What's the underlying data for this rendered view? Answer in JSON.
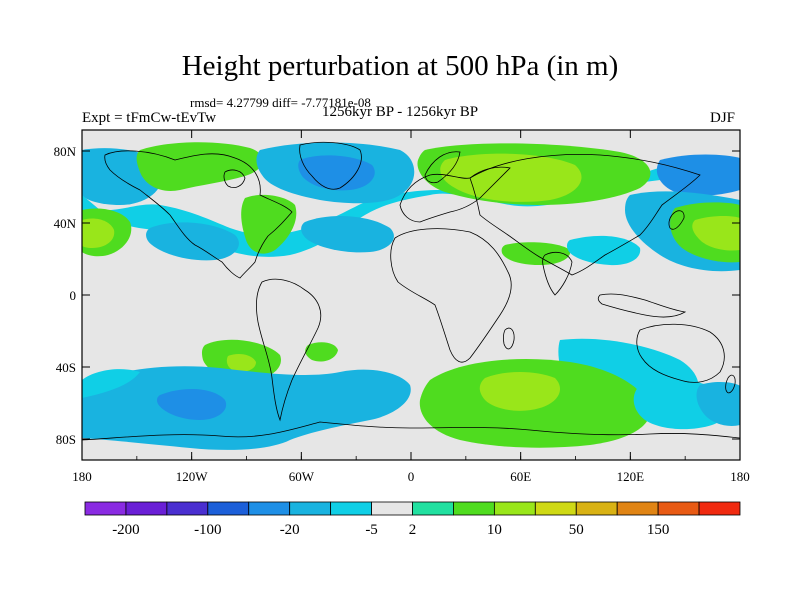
{
  "title": "Height perturbation at 500 hPa (in m)",
  "stats": "rmsd= 4.27799 diff= -7.77181e-08",
  "experiment": "Expt = tFmCw-tEvTw",
  "period": "1256kyr BP - 1256kyr BP",
  "season": "DJF",
  "axes": {
    "lat_labels": [
      "80N",
      "40N",
      "0",
      "40S",
      "80S"
    ],
    "lon_labels": [
      "180",
      "120W",
      "60W",
      "0",
      "60E",
      "120E",
      "180"
    ]
  },
  "colorbar": {
    "labels": [
      "-200",
      "-100",
      "-20",
      "-5",
      "2",
      "10",
      "50",
      "150"
    ],
    "colors": [
      "#8a2be2",
      "#6a1fd6",
      "#4a2fd0",
      "#1c5fd9",
      "#1e8fe6",
      "#19b3e0",
      "#10cfe6",
      "#e6e6e6",
      "#21e0a0",
      "#4fdc1f",
      "#99e61a",
      "#cfd915",
      "#d9b214",
      "#e08414",
      "#e85a14",
      "#f02a10"
    ]
  },
  "palette": {
    "land_outline": "#000000",
    "background": "#e6e6e6"
  }
}
